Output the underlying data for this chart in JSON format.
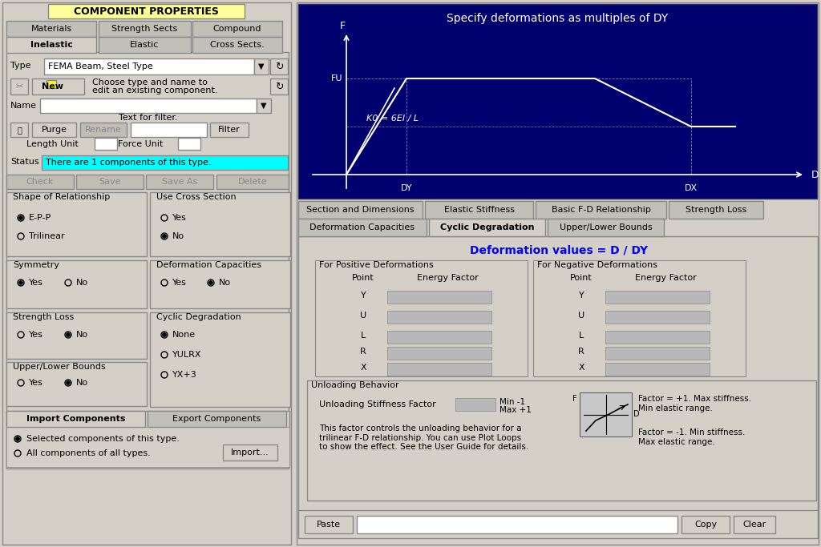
{
  "bg_color": "#d4d0c8",
  "panel_bg": "#0a0a5a",
  "cyan_status": "#00ffff",
  "yellow_title": "#ffff99",
  "title_text": "COMPONENT PROPERTIES",
  "graph_title": "Specify deformations as multiples of DY",
  "type_value": "FEMA Beam, Steel Type",
  "status_text": "There are 1 components of this type.",
  "buttons_row1": [
    "Check",
    "Save",
    "Save As",
    "Delete"
  ],
  "deform_values_label": "Deformation values = D / DY",
  "pos_def_label": "For Positive Deformations",
  "neg_def_label": "For Negative Deformations",
  "point_label": "Point",
  "energy_label": "Energy Factor",
  "points": [
    "Y",
    "U",
    "L",
    "R",
    "X"
  ],
  "unloading_stiffness": "Unloading Stiffness Factor",
  "min_val": "Min -1",
  "max_val": "Max +1",
  "factor_text1": "Factor = +1. Max stiffness.\nMin elastic range.",
  "factor_d": "D",
  "factor_text2": "Factor = -1. Min stiffness.\nMax elastic range.",
  "unloading_desc": "This factor controls the unloading behavior for a\ntrilinear F-D relationship. You can use Plot Loops\nto show the effect. See the User Guide for details.",
  "new_btn": "New",
  "graph_bg": "#00006e"
}
